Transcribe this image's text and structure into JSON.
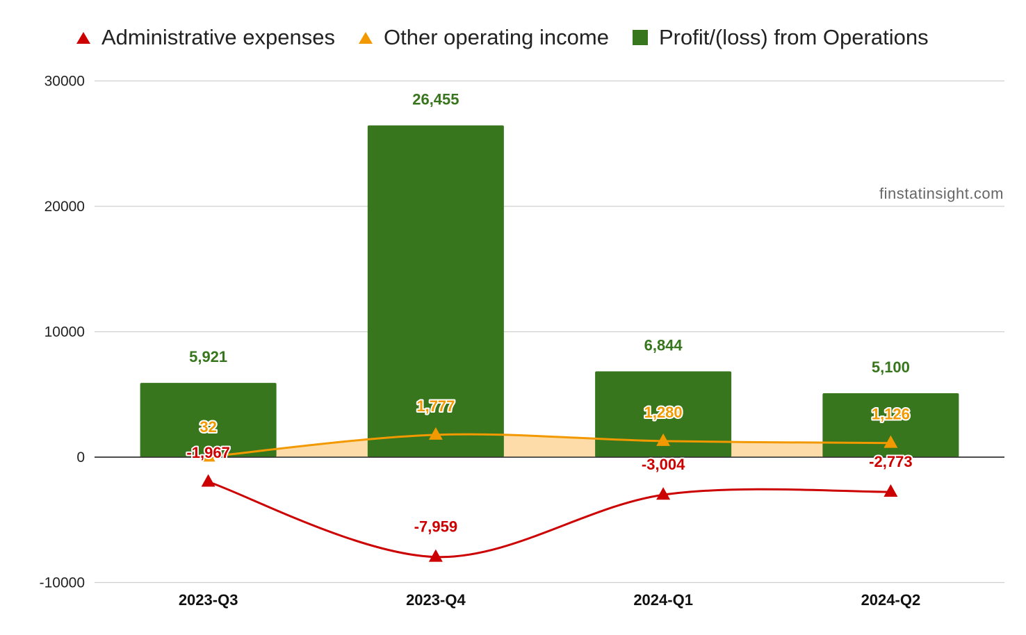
{
  "chart_data": {
    "type": "bar",
    "categories": [
      "2023-Q3",
      "2023-Q4",
      "2024-Q1",
      "2024-Q2"
    ],
    "series": [
      {
        "name": "Administrative expenses",
        "kind": "line",
        "marker": "triangle",
        "color": "#cc0000",
        "values": [
          -1967,
          -7959,
          -3004,
          -2773
        ],
        "labels": [
          "-1,967",
          "-7,959",
          "-3,004",
          "-2,773"
        ]
      },
      {
        "name": "Other operating income",
        "kind": "area",
        "marker": "triangle",
        "color": "#f29900",
        "fill": "#fddcaa",
        "values": [
          32,
          1777,
          1280,
          1126
        ],
        "labels": [
          "32",
          "1,777",
          "1,280",
          "1,126"
        ]
      },
      {
        "name": "Profit/(loss) from Operations",
        "kind": "bar",
        "marker": "square",
        "color": "#38761d",
        "values": [
          5921,
          26455,
          6844,
          5100
        ],
        "labels": [
          "5,921",
          "26,455",
          "6,844",
          "5,100"
        ]
      }
    ],
    "yticks": [
      30000,
      20000,
      10000,
      0,
      -10000
    ],
    "ylim": [
      -10000,
      30000
    ],
    "grid": true,
    "legend_position": "top"
  },
  "watermark": "finstatinsight.com"
}
